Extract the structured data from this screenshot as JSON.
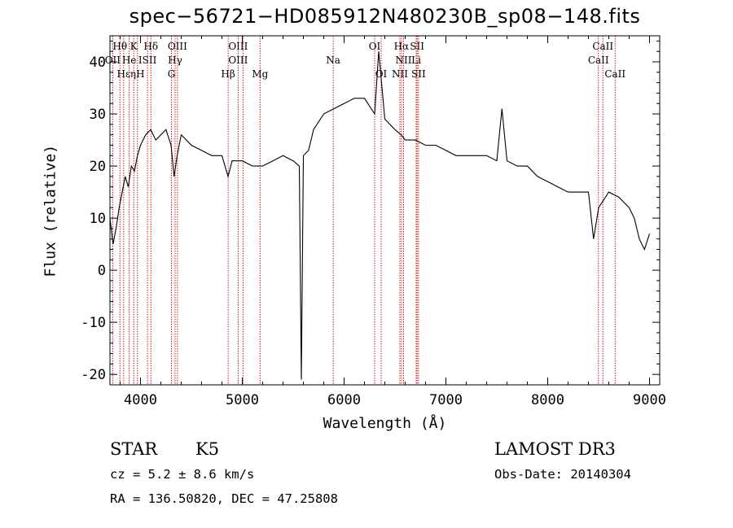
{
  "chart_data": {
    "type": "line",
    "title": "spec−56721−HD085912N480230B_sp08−148.fits",
    "xlabel": "Wavelength (Å)",
    "ylabel": "Flux (relative)",
    "xlim": [
      3700,
      9100
    ],
    "ylim": [
      -22,
      45
    ],
    "xticks": [
      4000,
      5000,
      6000,
      7000,
      8000,
      9000
    ],
    "yticks": [
      -20,
      -10,
      0,
      10,
      20,
      30,
      40
    ],
    "grid": false,
    "series": [
      {
        "x": [
          3700,
          3730,
          3760,
          3790,
          3820,
          3850,
          3880,
          3910,
          3940,
          3970,
          4000,
          4050,
          4100,
          4150,
          4200,
          4250,
          4300,
          4330,
          4360,
          4400,
          4450,
          4500,
          4600,
          4700,
          4800,
          4860,
          4900,
          5000,
          5100,
          5200,
          5300,
          5400,
          5500,
          5560,
          5580,
          5600,
          5650,
          5700,
          5800,
          5900,
          6000,
          6100,
          6200,
          6300,
          6340,
          6400,
          6500,
          6560,
          6600,
          6700,
          6800,
          6900,
          7000,
          7100,
          7200,
          7300,
          7400,
          7500,
          7550,
          7600,
          7700,
          7800,
          7900,
          8000,
          8100,
          8200,
          8300,
          8400,
          8450,
          8500,
          8600,
          8700,
          8800,
          8850,
          8900,
          8950,
          9000
        ],
        "y": [
          10,
          5,
          8,
          12,
          15,
          18,
          16,
          20,
          19,
          22,
          24,
          26,
          27,
          25,
          26,
          27,
          24,
          18,
          22,
          26,
          25,
          24,
          23,
          22,
          22,
          18,
          21,
          21,
          20,
          20,
          21,
          22,
          21,
          20,
          -21,
          22,
          23,
          27,
          30,
          31,
          32,
          33,
          33,
          30,
          42,
          29,
          27,
          26,
          25,
          25,
          24,
          24,
          23,
          22,
          22,
          22,
          22,
          21,
          31,
          21,
          20,
          20,
          18,
          17,
          16,
          15,
          15,
          15,
          6,
          12,
          15,
          14,
          12,
          10,
          6,
          4,
          7
        ]
      }
    ],
    "line_labels": [
      {
        "name": "Hθ",
        "x": 3798,
        "row": 0
      },
      {
        "name": "K",
        "x": 3934,
        "row": 0
      },
      {
        "name": "Hδ",
        "x": 4102,
        "row": 0
      },
      {
        "name": "OIII",
        "x": 4363,
        "row": 0
      },
      {
        "name": "OIII",
        "x": 4959,
        "row": 0
      },
      {
        "name": "OI",
        "x": 6300,
        "row": 0
      },
      {
        "name": "Hα",
        "x": 6563,
        "row": 0
      },
      {
        "name": "SII",
        "x": 6717,
        "row": 0
      },
      {
        "name": "CaII",
        "x": 8542,
        "row": 0
      },
      {
        "name": "OII",
        "x": 3727,
        "row": 1
      },
      {
        "name": "He",
        "x": 3889,
        "row": 1
      },
      {
        "name": "ISII",
        "x": 4069,
        "row": 1
      },
      {
        "name": "Hγ",
        "x": 4340,
        "row": 1
      },
      {
        "name": "OIII",
        "x": 4959,
        "row": 1
      },
      {
        "name": "Na",
        "x": 5893,
        "row": 1
      },
      {
        "name": "NII",
        "x": 6584,
        "row": 1
      },
      {
        "name": "Li",
        "x": 6708,
        "row": 1
      },
      {
        "name": "CaII",
        "x": 8498,
        "row": 1
      },
      {
        "name": "Hε",
        "x": 3835,
        "row": 2
      },
      {
        "name": "ηH",
        "x": 3970,
        "row": 2
      },
      {
        "name": "G",
        "x": 4304,
        "row": 2
      },
      {
        "name": "Hβ",
        "x": 4861,
        "row": 2
      },
      {
        "name": "Mg",
        "x": 5175,
        "row": 2
      },
      {
        "name": "OI",
        "x": 6364,
        "row": 2
      },
      {
        "name": "NII",
        "x": 6548,
        "row": 2
      },
      {
        "name": "SII",
        "x": 6731,
        "row": 2
      },
      {
        "name": "CaII",
        "x": 8662,
        "row": 2
      }
    ],
    "line_markers": [
      3727,
      3798,
      3835,
      3889,
      3934,
      3970,
      4069,
      4102,
      4304,
      4340,
      4363,
      4861,
      4959,
      5007,
      5175,
      5893,
      6300,
      6364,
      6548,
      6563,
      6584,
      6708,
      6717,
      6731,
      8498,
      8542,
      8662
    ]
  },
  "info": {
    "class_label": "STAR",
    "subclass": "K5",
    "cz": "cz = 5.2 ± 8.6 km/s",
    "coords": "RA = 136.50820, DEC =  47.25808",
    "survey": "LAMOST DR3",
    "obs_date": "Obs-Date: 20140304"
  },
  "colors": {
    "marker": "#cc0000",
    "spectrum": "#000000"
  }
}
